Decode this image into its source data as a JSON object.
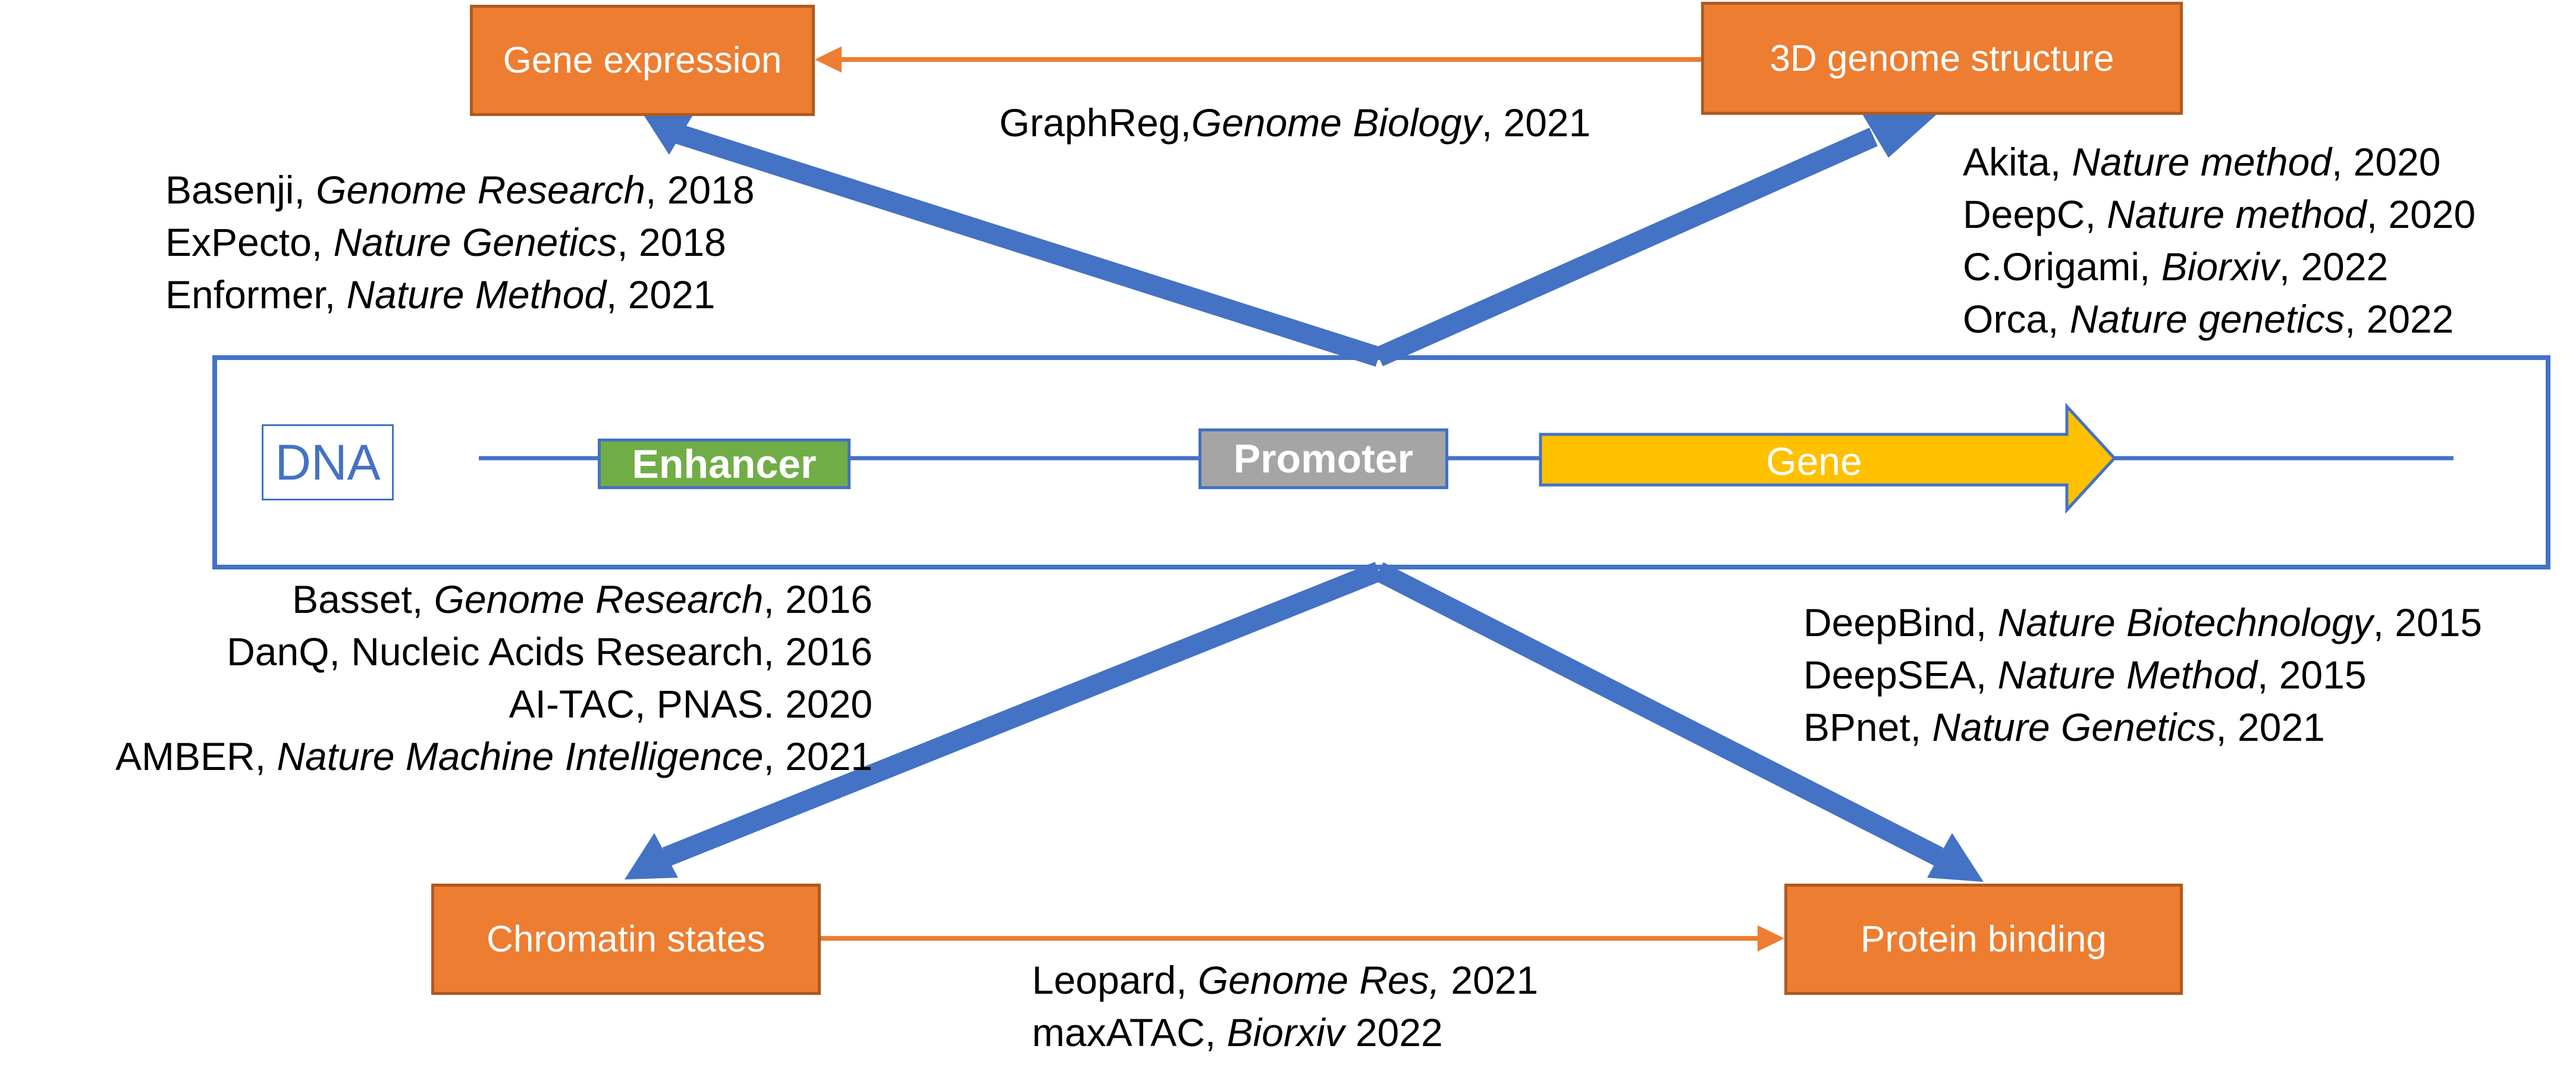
{
  "nodes": {
    "gene_expression": "Gene expression",
    "genome_3d": "3D genome structure",
    "chromatin_states": "Chromatin states",
    "protein_binding": "Protein binding"
  },
  "dna": {
    "label": "DNA",
    "enhancer": "Enhancer",
    "promoter": "Promoter",
    "gene": "Gene"
  },
  "refs": {
    "graphreg": [
      {
        "name": "GraphReg,",
        "journal": "Genome Biology",
        "year": ", 2021"
      }
    ],
    "gene_expression": [
      {
        "name": "Basenji, ",
        "journal": "Genome Research",
        "year": ", 2018"
      },
      {
        "name": "ExPecto, ",
        "journal": "Nature Genetics",
        "year": ", 2018"
      },
      {
        "name": "Enformer, ",
        "journal": "Nature Method",
        "year": ", 2021"
      }
    ],
    "genome_3d": [
      {
        "name": "Akita, ",
        "journal": "Nature method",
        "year": ", 2020"
      },
      {
        "name": "DeepC, ",
        "journal": "Nature method",
        "year": ", 2020"
      },
      {
        "name": "C.Origami, ",
        "journal": "Biorxiv",
        "year": ", 2022"
      },
      {
        "name": "Orca, ",
        "journal": "Nature genetics",
        "year": ", 2022"
      }
    ],
    "chromatin": [
      {
        "name": "Basset, ",
        "journal": "Genome Research",
        "year": ", 2016"
      },
      {
        "name": "DanQ,  Nucleic Acids Research, 2016",
        "journal": "",
        "year": ""
      },
      {
        "name": "AI-TAC, PNAS. 2020",
        "journal": "",
        "year": ""
      },
      {
        "name": "AMBER, ",
        "journal": "Nature Machine Intelligence",
        "year": ", 2021"
      }
    ],
    "protein": [
      {
        "name": "DeepBind, ",
        "journal": "Nature Biotechnology",
        "year": ", 2015"
      },
      {
        "name": "DeepSEA, ",
        "journal": "Nature Method",
        "year": ", 2015"
      },
      {
        "name": "BPnet, ",
        "journal": "Nature Genetics",
        "year": ", 2021"
      }
    ],
    "leopard": [
      {
        "name": "Leopard, ",
        "journal": "Genome Res,",
        "year": " 2021"
      },
      {
        "name": "maxATAC, ",
        "journal": "Biorxiv",
        "year": " 2022"
      }
    ]
  },
  "colors": {
    "box_fill": "#ED7D31",
    "box_border": "#AE5A21",
    "arrow_blue": "#4472C4",
    "arrow_orange": "#ED7D31",
    "enhancer": "#70AD47",
    "promoter": "#A5A5A5",
    "gene": "#FFC000"
  }
}
